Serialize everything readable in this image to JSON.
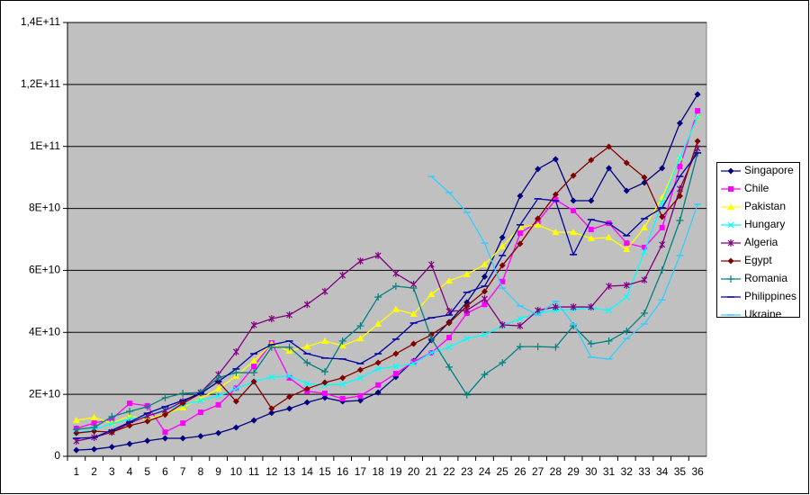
{
  "chart_data": {
    "type": "line",
    "categories": [
      "1",
      "2",
      "3",
      "4",
      "5",
      "6",
      "7",
      "8",
      "9",
      "10",
      "11",
      "12",
      "13",
      "14",
      "15",
      "16",
      "17",
      "18",
      "19",
      "20",
      "21",
      "22",
      "23",
      "24",
      "25",
      "26",
      "27",
      "28",
      "29",
      "30",
      "31",
      "32",
      "33",
      "34",
      "35",
      "36"
    ],
    "ylim": [
      0,
      140000000000.0
    ],
    "yticks": [
      0,
      {
        "value": 20000000000.0,
        "label": "2E+10"
      },
      {
        "value": 40000000000.0,
        "label": "4E+10"
      },
      {
        "value": 60000000000.0,
        "label": "6E+10"
      },
      {
        "value": 80000000000.0,
        "label": "8E+10"
      },
      {
        "value": 100000000000.0,
        "label": "1E+11"
      },
      {
        "value": 120000000000.0,
        "label": "1,2E+11"
      },
      {
        "value": 140000000000.0,
        "label": "1,4E+11"
      }
    ],
    "grid": true,
    "legend": "right",
    "series": [
      {
        "name": "Singapore",
        "color": "#000080",
        "marker": "diamond",
        "values": [
          2000000000.0,
          2300000000.0,
          3000000000.0,
          4000000000.0,
          5000000000.0,
          5800000000.0,
          5800000000.0,
          6500000000.0,
          7500000000.0,
          9300000000.0,
          11600000000.0,
          14000000000.0,
          15400000000.0,
          17400000000.0,
          18900000000.0,
          17700000000.0,
          18000000000.0,
          20600000000.0,
          25600000000.0,
          30800000000.0,
          37500000000.0,
          43300000000.0,
          49700000000.0,
          58000000000.0,
          70600000000.0,
          84000000000.0,
          92700000000.0,
          95900000000.0,
          82500000000.0,
          82500000000.0,
          93000000000.0,
          85700000000.0,
          88300000000.0,
          93000000000.0,
          107500000000.0,
          116800000000.0
        ]
      },
      {
        "name": "Chile",
        "color": "#ff00ff",
        "marker": "square",
        "values": [
          9000000000.0,
          10700000000.0,
          12000000000.0,
          17100000000.0,
          16300000000.0,
          7800000000.0,
          10700000000.0,
          14200000000.0,
          16600000000.0,
          22000000000.0,
          29000000000.0,
          36600000000.0,
          25300000000.0,
          21000000000.0,
          20300000000.0,
          18600000000.0,
          19500000000.0,
          23000000000.0,
          26700000000.0,
          30500000000.0,
          33400000000.0,
          38300000000.0,
          46200000000.0,
          49000000000.0,
          56400000000.0,
          72000000000.0,
          75800000000.0,
          82800000000.0,
          79300000000.0,
          73200000000.0,
          75200000000.0,
          68800000000.0,
          67400000000.0,
          73800000000.0,
          93500000000.0,
          111500000000.0
        ]
      },
      {
        "name": "Pakistan",
        "color": "#ffff00",
        "marker": "triangle",
        "values": [
          11600000000.0,
          12500000000.0,
          10700000000.0,
          13000000000.0,
          12000000000.0,
          13600000000.0,
          15700000000.0,
          18600000000.0,
          21800000000.0,
          25900000000.0,
          30800000000.0,
          36300000000.0,
          34000000000.0,
          35400000000.0,
          37200000000.0,
          35700000000.0,
          38000000000.0,
          42700000000.0,
          47400000000.0,
          45900000000.0,
          52300000000.0,
          56600000000.0,
          58700000000.0,
          61900000000.0,
          67700000000.0,
          74000000000.0,
          74700000000.0,
          72300000000.0,
          72300000000.0,
          70300000000.0,
          70600000000.0,
          66800000000.0,
          73800000000.0,
          83400000000.0,
          96400000000.0,
          109500000000.0
        ]
      },
      {
        "name": "Hungary",
        "color": "#00ffff",
        "marker": "x",
        "values": [
          7500000000.0,
          8700000000.0,
          10500000000.0,
          12000000000.0,
          13000000000.0,
          15100000000.0,
          16600000000.0,
          18000000000.0,
          19500000000.0,
          21800000000.0,
          24100000000.0,
          25600000000.0,
          25900000000.0,
          23500000000.0,
          23000000000.0,
          23200000000.0,
          25300000000.0,
          28200000000.0,
          29000000000.0,
          29900000000.0,
          33400000000.0,
          35200000000.0,
          38000000000.0,
          39200000000.0,
          42100000000.0,
          44400000000.0,
          46200000000.0,
          47100000000.0,
          47400000000.0,
          47900000000.0,
          47100000000.0,
          51400000000.0,
          66000000000.0,
          81900000000.0,
          96400000000.0,
          109500000000.0
        ]
      },
      {
        "name": "Algeria",
        "color": "#800080",
        "marker": "star",
        "values": [
          4900000000.0,
          6100000000.0,
          7800000000.0,
          10700000000.0,
          13000000000.0,
          14800000000.0,
          17700000000.0,
          20600000000.0,
          26400000000.0,
          33700000000.0,
          42400000000.0,
          44400000000.0,
          45600000000.0,
          49000000000.0,
          53200000000.0,
          58400000000.0,
          63000000000.0,
          64800000000.0,
          59000000000.0,
          55500000000.0,
          61900000000.0,
          46800000000.0,
          47100000000.0,
          50800000000.0,
          42400000000.0,
          42100000000.0,
          47100000000.0,
          48200000000.0,
          48200000000.0,
          48200000000.0,
          54900000000.0,
          55200000000.0,
          56900000000.0,
          68300000000.0,
          86300000000.0,
          99400000000.0
        ]
      },
      {
        "name": "Egypt",
        "color": "#800000",
        "marker": "diamond",
        "values": [
          7500000000.0,
          8100000000.0,
          7800000000.0,
          9900000000.0,
          11300000000.0,
          13400000000.0,
          17100000000.0,
          20300000000.0,
          24100000000.0,
          17700000000.0,
          24100000000.0,
          15400000000.0,
          19200000000.0,
          21800000000.0,
          23800000000.0,
          25300000000.0,
          27900000000.0,
          30200000000.0,
          33100000000.0,
          36300000000.0,
          39200000000.0,
          43000000000.0,
          48500000000.0,
          53200000000.0,
          61600000000.0,
          68600000000.0,
          76700000000.0,
          84500000000.0,
          90600000000.0,
          95600000000.0,
          99900000000.0,
          94700000000.0,
          90000000000.0,
          77300000000.0,
          84000000000.0,
          101700000000.0
        ]
      },
      {
        "name": "Romania",
        "color": "#008080",
        "marker": "plus",
        "values": [
          8700000000.0,
          9300000000.0,
          12800000000.0,
          14500000000.0,
          16000000000.0,
          18900000000.0,
          20300000000.0,
          20600000000.0,
          25300000000.0,
          27000000000.0,
          27000000000.0,
          35200000000.0,
          35200000000.0,
          30200000000.0,
          27300000000.0,
          37200000000.0,
          42100000000.0,
          51400000000.0,
          54900000000.0,
          54300000000.0,
          38000000000.0,
          28800000000.0,
          19800000000.0,
          26400000000.0,
          30200000000.0,
          35400000000.0,
          35400000000.0,
          35200000000.0,
          42100000000.0,
          36300000000.0,
          37200000000.0,
          40400000000.0,
          46200000000.0,
          60100000000.0,
          76100000000.0,
          97900000000.0
        ]
      },
      {
        "name": "Philippines",
        "color": "#0000a0",
        "marker": "dash",
        "values": [
          5800000000.0,
          6100000000.0,
          8400000000.0,
          11000000000.0,
          13900000000.0,
          16000000000.0,
          18000000000.0,
          20300000000.0,
          24100000000.0,
          28200000000.0,
          33100000000.0,
          36000000000.0,
          37200000000.0,
          33100000000.0,
          31700000000.0,
          31400000000.0,
          29900000000.0,
          33100000000.0,
          37800000000.0,
          43000000000.0,
          44700000000.0,
          45600000000.0,
          52900000000.0,
          54900000000.0,
          64800000000.0,
          74700000000.0,
          83100000000.0,
          82500000000.0,
          65100000000.0,
          76400000000.0,
          75200000000.0,
          71200000000.0,
          76700000000.0,
          80200000000.0,
          90300000000.0,
          97900000000.0
        ]
      },
      {
        "name": "Ukraine",
        "color": "#33ccff",
        "marker": "dash",
        "values": [
          null,
          null,
          null,
          null,
          null,
          null,
          null,
          null,
          null,
          null,
          null,
          null,
          null,
          null,
          null,
          null,
          null,
          null,
          null,
          null,
          90300000000.0,
          85100000000.0,
          78700000000.0,
          68800000000.0,
          54300000000.0,
          48500000000.0,
          45600000000.0,
          50000000000.0,
          42700000000.0,
          32000000000.0,
          31400000000.0,
          38000000000.0,
          42700000000.0,
          50500000000.0,
          64800000000.0,
          81300000000.0
        ]
      }
    ]
  }
}
